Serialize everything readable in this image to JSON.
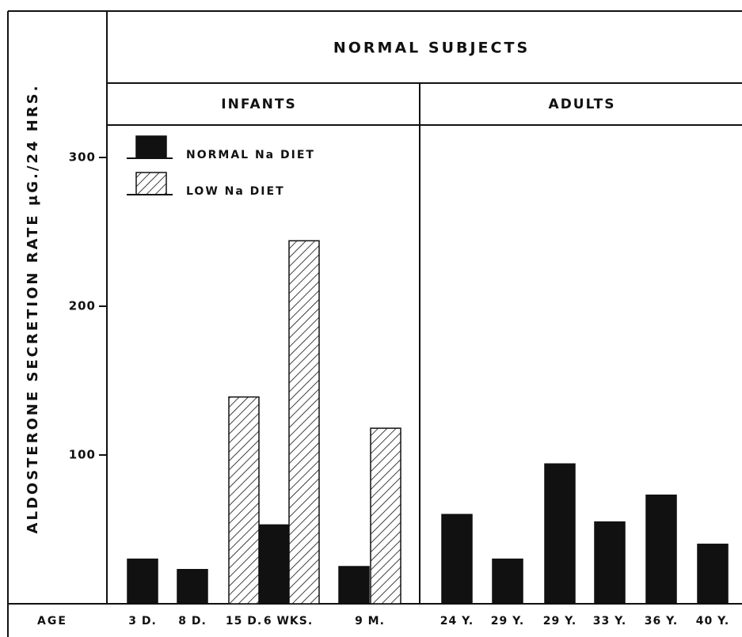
{
  "chart_data": {
    "type": "bar",
    "title": "NORMAL SUBJECTS",
    "group_labels": [
      "INFANTS",
      "ADULTS"
    ],
    "y_label": "ALDOSTERONE SECRETION RATE μG./24 HRS.",
    "x_label": "AGE",
    "categories": [
      "3 D.",
      "8 D.",
      "15 D.",
      "6 WKS.",
      "9 M.",
      "24 Y.",
      "29 Y.",
      "29 Y.",
      "33 Y.",
      "36 Y.",
      "40 Y."
    ],
    "series": [
      {
        "name": "NORMAL Na DIET",
        "color": "#111111",
        "values": [
          30,
          23,
          null,
          53,
          25,
          60,
          30,
          94,
          55,
          73,
          40
        ]
      },
      {
        "name": "LOW Na DIET",
        "color": "hatch",
        "values": [
          null,
          null,
          139,
          244,
          118,
          null,
          null,
          null,
          null,
          null,
          null
        ]
      }
    ],
    "ylim": [
      0,
      400
    ],
    "yticks": [
      100,
      200,
      300
    ],
    "grid": false
  }
}
